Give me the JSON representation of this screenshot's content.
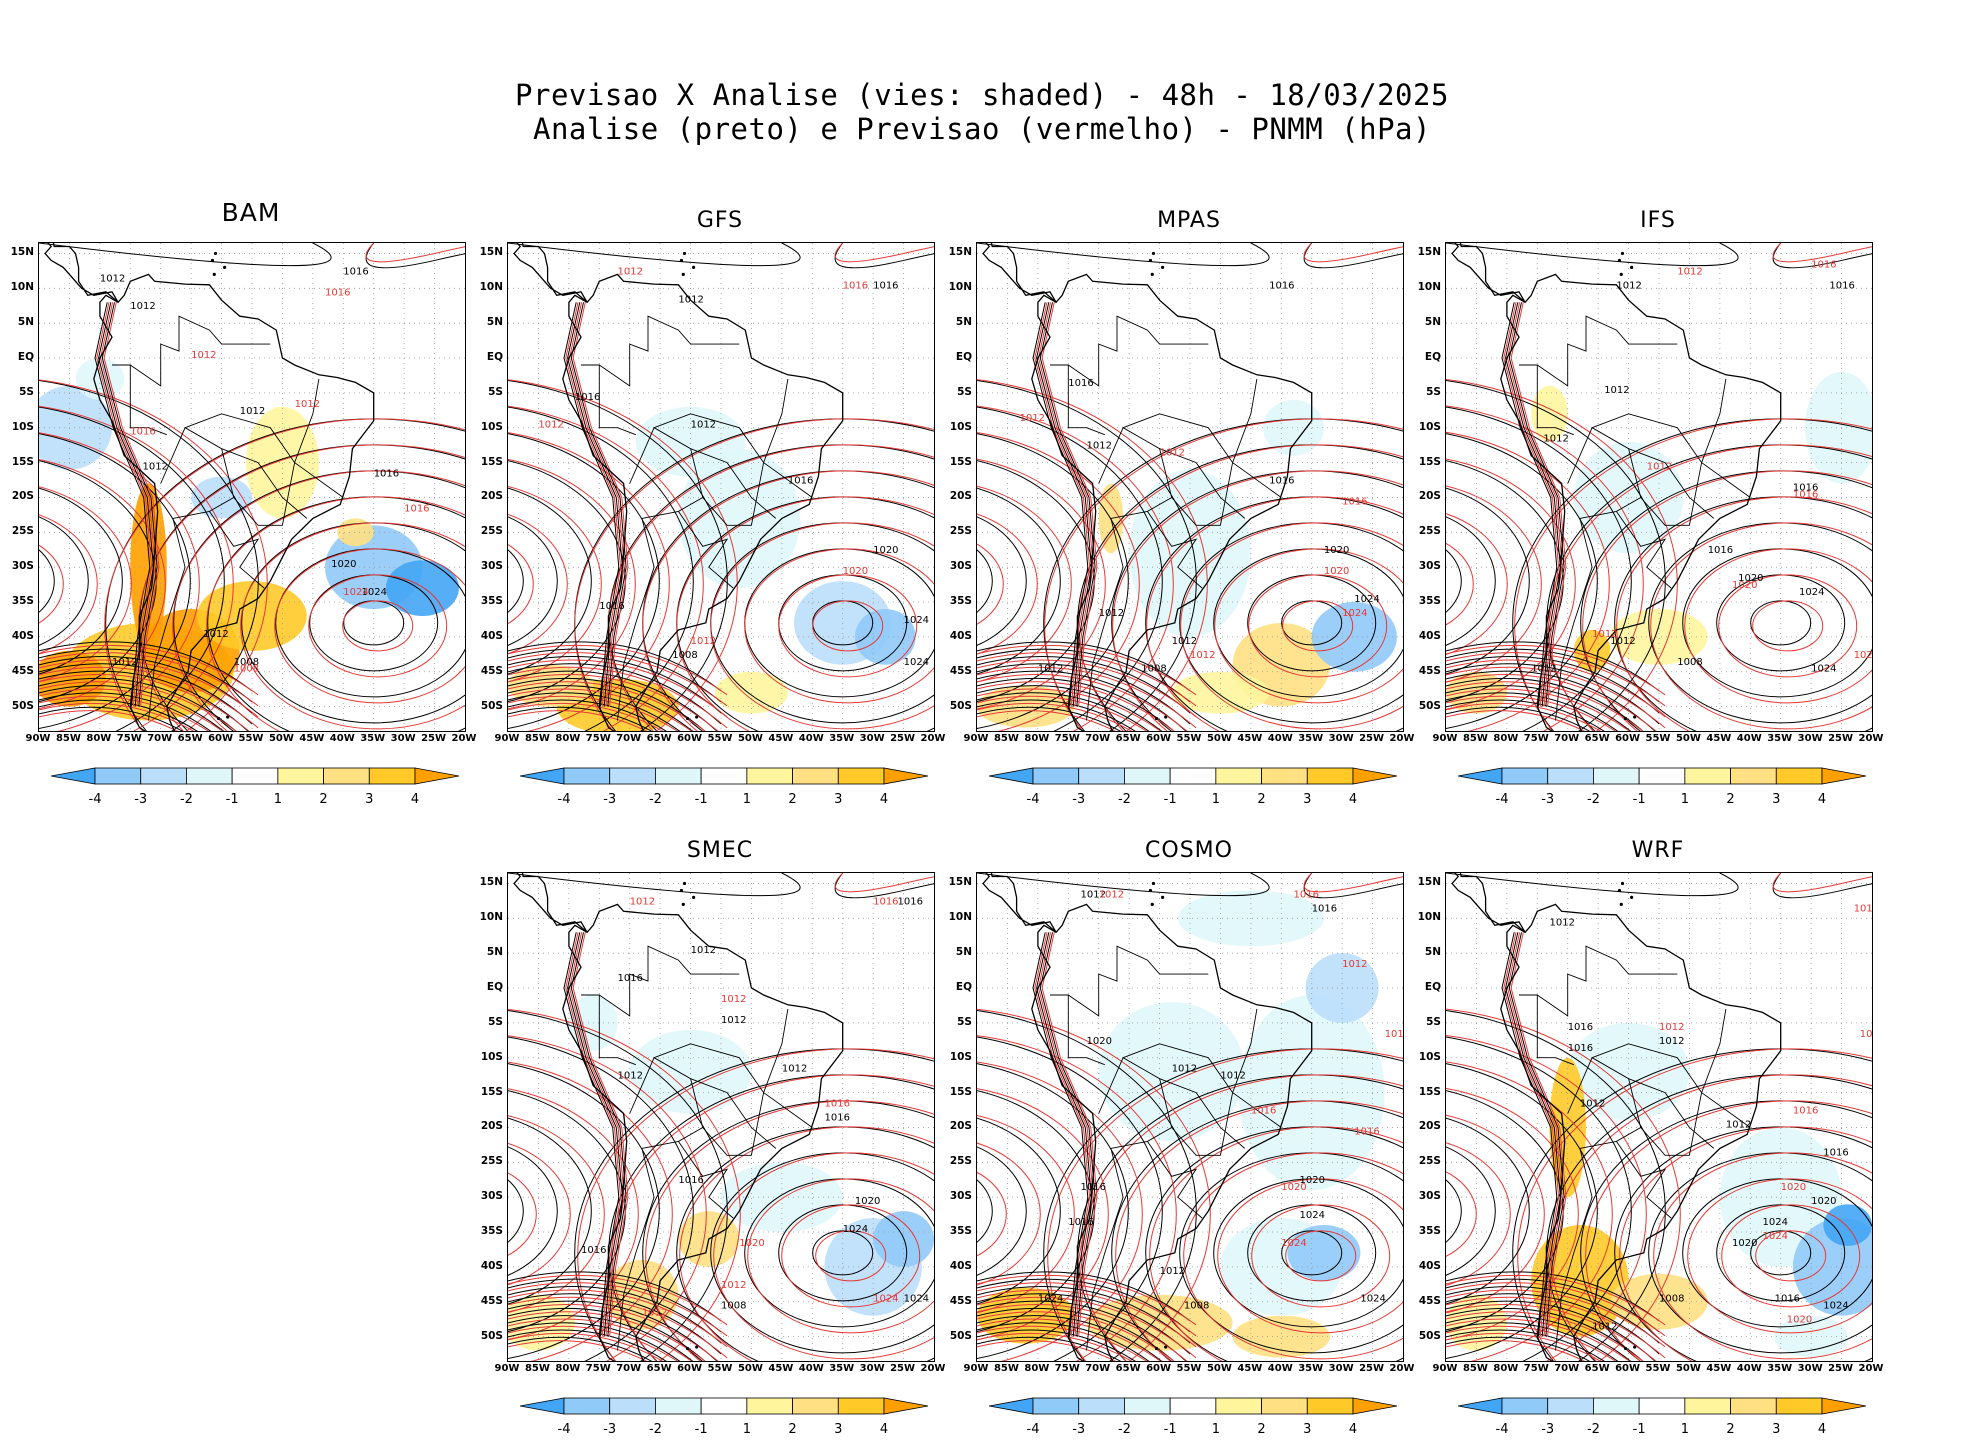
{
  "figure": {
    "title_line1": "Previsao X Analise (vies: shaded) - 48h - 18/03/2025",
    "title_line2": "Analise (preto) e Previsao (vermelho) - PNMM (hPa)"
  },
  "panels": [
    {
      "name": "BAM"
    },
    {
      "name": "GFS"
    },
    {
      "name": "MPAS"
    },
    {
      "name": "IFS"
    },
    {
      "name": "SMEC"
    },
    {
      "name": "COSMO"
    },
    {
      "name": "WRF"
    }
  ],
  "axes": {
    "lat_labels": [
      "15N",
      "10N",
      "5N",
      "EQ",
      "5S",
      "10S",
      "15S",
      "20S",
      "25S",
      "30S",
      "35S",
      "40S",
      "45S",
      "50S"
    ],
    "lon_labels": [
      "90W",
      "85W",
      "80W",
      "75W",
      "70W",
      "65W",
      "60W",
      "55W",
      "50W",
      "45W",
      "40W",
      "35W",
      "30W",
      "25W",
      "20W"
    ]
  },
  "colorbar": {
    "labels": [
      "-4",
      "-3",
      "-2",
      "-1",
      "1",
      "2",
      "3",
      "4"
    ],
    "colors": [
      "#42a5f5",
      "#90caf9",
      "#bbdefb",
      "#e0f7fa",
      "#ffffff",
      "#fff59d",
      "#ffe082",
      "#ffca28",
      "#ffa000"
    ]
  },
  "isobar_labels": {
    "analysis_color": "#000000",
    "forecast_color": "#e53935",
    "values": [
      "1008",
      "1012",
      "1016",
      "1020",
      "1024"
    ]
  }
}
